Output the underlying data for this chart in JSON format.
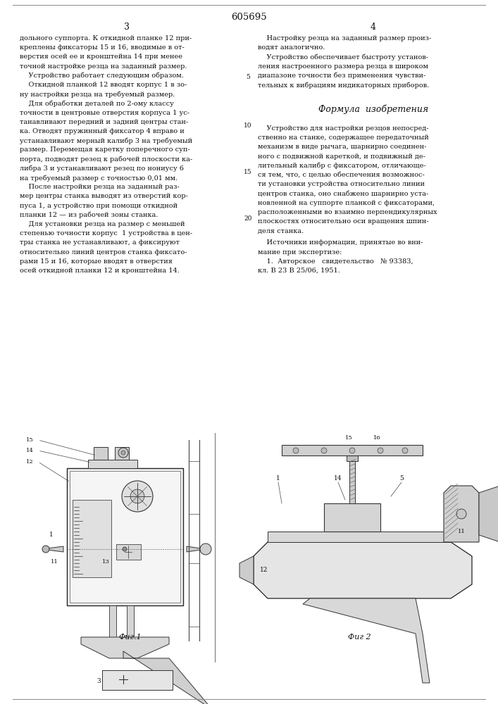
{
  "patent_number": "605695",
  "page_col_left": "3",
  "page_col_right": "4",
  "background_color": "#ffffff",
  "text_color": "#111111",
  "border_color": "#444444",
  "fig1_caption": "Фиг.1",
  "fig2_caption": "Фиг 2",
  "col_left_lines": [
    "дольного суппорта. К откидной планке 12 при-",
    "креплены фиксаторы 15 и 16, вводимые в от-",
    "верстия осей ее и кронштейна 14 при менее",
    "точной настройке резца на заданный размер.",
    "    Устройство работает следующим образом.",
    "    Откидной планкой 12 вводят корпус 1 в зо-",
    "ну настройки резца на требуемый размер.",
    "    Для обработки деталей по 2-ому классу",
    "точности в центровые отверстия корпуса 1 ус-",
    "танавливают передний и задний центры стан-",
    "ка. Отводят пружинный фиксатор 4 вправо и",
    "устанавливают мерный калибр 3 на требуемый",
    "размер. Перемещая каретку поперечного суп-",
    "порта, подводят резец к рабочей плоскости ка-",
    "либра 3 и устанавливают резец по нониусу 6",
    "на требуемый размер с точностью 0,01 мм.",
    "    После настройки резца на заданный раз-",
    "мер центры станка выводят из отверстий кор-",
    "пуса 1, а устройство при помощи откидной",
    "планки 12 — из рабочей зоны станка.",
    "    Для установки резца на размер с меньшей",
    "степенью точности корпус  1 устройства в цен-",
    "тры станка не устанавливают, а фиксируют",
    "относительно линий центров станка фиксато-",
    "рами 15 и 16, которые вводят в отверстия",
    "осей откидной планки 12 и кронштейна 14."
  ],
  "col_right_top_lines": [
    "    Настройку резца на заданный размер произ-",
    "водят аналогично.",
    "    Устройство обеспечивает быстроту установ-",
    "ления настроенного размера резца в широком",
    "диапазоне точности без применения чувстви-",
    "тельных к вибрациям индикаторных приборов."
  ],
  "formula_header": "Формула  изобретения",
  "col_right_formula_lines": [
    "    Устройство для настройки резцов непосред-",
    "ственно на станке, содержащее передаточный",
    "механизм в виде рычага, шарнирно соединен-",
    "ного с подвижной кареткой, и подвижный де-",
    "лительный калибр с фиксатором, отличающе-",
    "ся тем, что, с целью обеспечения возможнос-",
    "ти установки устройства относительно линии",
    "центров станка, оно снабжено шарнирно уста-",
    "новленной на суппорте планкой с фиксаторами,",
    "расположенными во взаимно перпендикулярных",
    "плоскостях относительно оси вращения шпин-",
    "деля станка."
  ],
  "sources_line1": "    Источники информации, принятые во вни-",
  "sources_line2": "мание при экспертизе:",
  "sources_line3": "    1.  Авторское   свидетельство   № 93383,",
  "sources_line4": "кл. В 23 В 25/06, 1951."
}
